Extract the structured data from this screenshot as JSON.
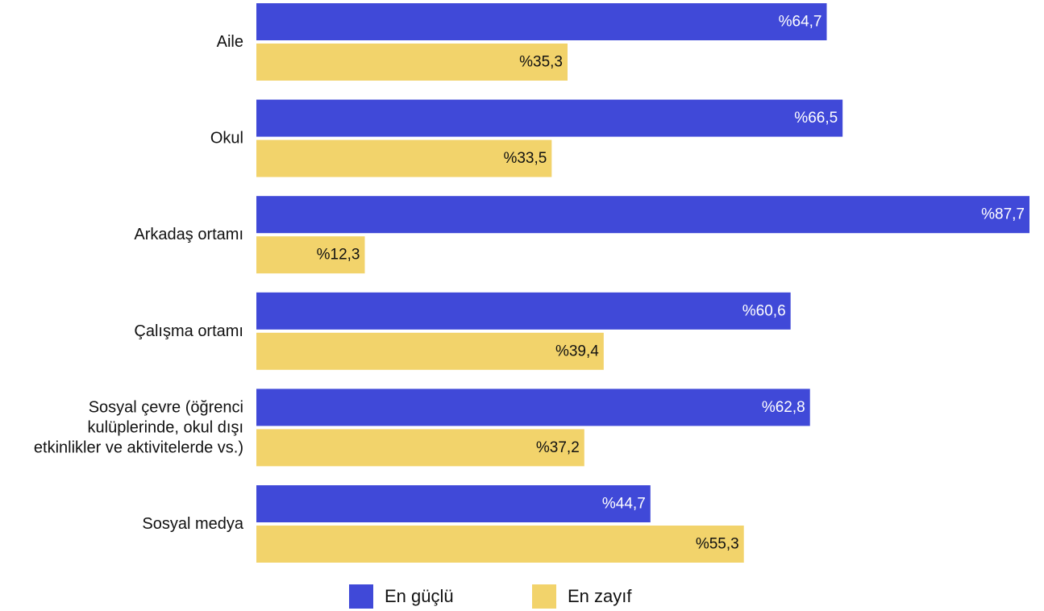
{
  "colors": {
    "strongest": "#4049D8",
    "weakest": "#F2D36B",
    "strongest_label": "#ffffff",
    "weakest_label": "#111111"
  },
  "legend": {
    "strongest": "En güçlü",
    "weakest": "En zayıf"
  },
  "chart_data": {
    "type": "bar",
    "orientation": "horizontal",
    "categories": [
      [
        "Aile"
      ],
      [
        "Okul"
      ],
      [
        "Arkadaş ortamı"
      ],
      [
        "Çalışma ortamı"
      ],
      [
        "Sosyal çevre (öğrenci",
        "kulüplerinde, okul dışı",
        "etkinlikler ve aktivitelerde vs.)"
      ],
      [
        "Sosyal medya"
      ]
    ],
    "series": [
      {
        "name": "En güçlü",
        "values": [
          64.7,
          66.5,
          87.7,
          60.6,
          62.8,
          44.7
        ],
        "labels": [
          "%64,7",
          "%66,5",
          "%87,7",
          "%60,6",
          "%62,8",
          "%44,7"
        ]
      },
      {
        "name": "En zayıf",
        "values": [
          35.3,
          33.5,
          12.3,
          39.4,
          37.2,
          55.3
        ],
        "labels": [
          "%35,3",
          "%33,5",
          "%12,3",
          "%39,4",
          "%37,2",
          "%55,3"
        ]
      }
    ],
    "xlim": [
      0,
      87.7
    ],
    "grid": false,
    "legend_position": "bottom"
  }
}
